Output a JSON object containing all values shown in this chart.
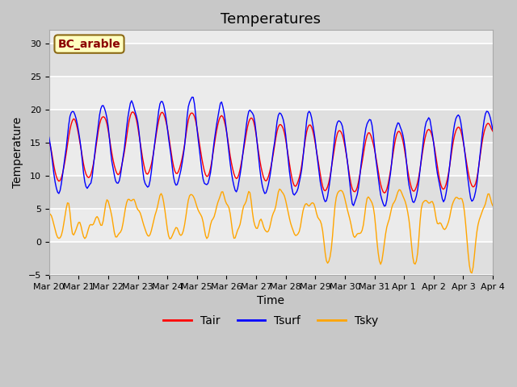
{
  "title": "Temperatures",
  "xlabel": "Time",
  "ylabel": "Temperature",
  "ylim": [
    -5,
    32
  ],
  "yticks": [
    -5,
    0,
    5,
    10,
    15,
    20,
    25,
    30
  ],
  "xlim": [
    0,
    360
  ],
  "xtick_positions": [
    0,
    24,
    48,
    72,
    96,
    120,
    144,
    168,
    192,
    216,
    240,
    264,
    288,
    312,
    336,
    360
  ],
  "xtick_labels": [
    "Mar 20",
    "Mar 21",
    "Mar 22",
    "Mar 23",
    "Mar 24",
    "Mar 25",
    "Mar 26",
    "Mar 27",
    "Mar 28",
    "Mar 29",
    "Mar 30",
    "Mar 31",
    "Apr 1",
    "Apr 2",
    "Apr 3",
    "Apr 4"
  ],
  "legend_labels": [
    "Tair",
    "Tsurf",
    "Tsky"
  ],
  "line_colors": [
    "red",
    "blue",
    "orange"
  ],
  "annotation_text": "BC_arable",
  "annotation_color": "#8B0000",
  "annotation_bg": "#FFFFC0",
  "annotation_border": "#8B6914",
  "plot_bg": "#EBEBEB",
  "title_fontsize": 13,
  "axis_fontsize": 10,
  "legend_fontsize": 10
}
